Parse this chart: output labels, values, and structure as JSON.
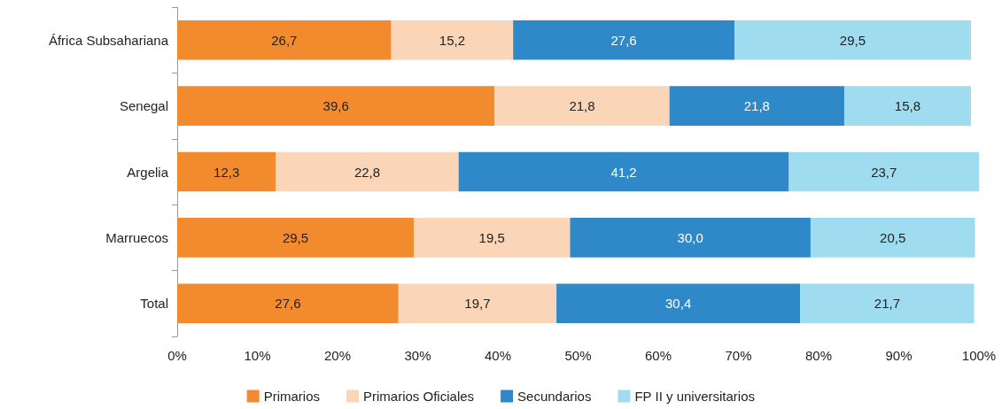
{
  "chart_data": {
    "type": "bar",
    "orientation": "horizontal",
    "stacked": true,
    "categories": [
      "África Subsahariana",
      "Senegal",
      "Argelia",
      "Marruecos",
      "Total"
    ],
    "series": [
      {
        "name": "Primarios",
        "color": "#f28a2e",
        "values": [
          26.7,
          39.6,
          12.3,
          29.5,
          27.6
        ],
        "value_labels": [
          "26,7",
          "39,6",
          "12,3",
          "29,5",
          "27,6"
        ]
      },
      {
        "name": "Primarios Oficiales",
        "color": "#fad5b8",
        "values": [
          15.2,
          21.8,
          22.8,
          19.5,
          19.7
        ],
        "value_labels": [
          "15,2",
          "21,8",
          "22,8",
          "19,5",
          "19,7"
        ]
      },
      {
        "name": "Secundarios",
        "color": "#2f88c8",
        "values": [
          27.6,
          21.8,
          41.2,
          30.0,
          30.4
        ],
        "value_labels": [
          "27,6",
          "21,8",
          "41,2",
          "30,0",
          "30,4"
        ]
      },
      {
        "name": "FP II y universitarios",
        "color": "#a0dcf0",
        "values": [
          29.5,
          15.8,
          23.7,
          20.5,
          21.7
        ],
        "value_labels": [
          "29,5",
          "15,8",
          "23,7",
          "20,5",
          "21,7"
        ]
      }
    ],
    "xlim": [
      0,
      100
    ],
    "xticks": [
      {
        "value": 0,
        "label": "0%"
      },
      {
        "value": 10,
        "label": "10%"
      },
      {
        "value": 20,
        "label": "20%"
      },
      {
        "value": 30,
        "label": "30%"
      },
      {
        "value": 40,
        "label": "40%"
      },
      {
        "value": 50,
        "label": "50%"
      },
      {
        "value": 60,
        "label": "60%"
      },
      {
        "value": 70,
        "label": "70%"
      },
      {
        "value": 80,
        "label": "80%"
      },
      {
        "value": 90,
        "label": "90%"
      },
      {
        "value": 100,
        "label": "100%"
      }
    ],
    "grid": false,
    "legend": "bottom"
  }
}
